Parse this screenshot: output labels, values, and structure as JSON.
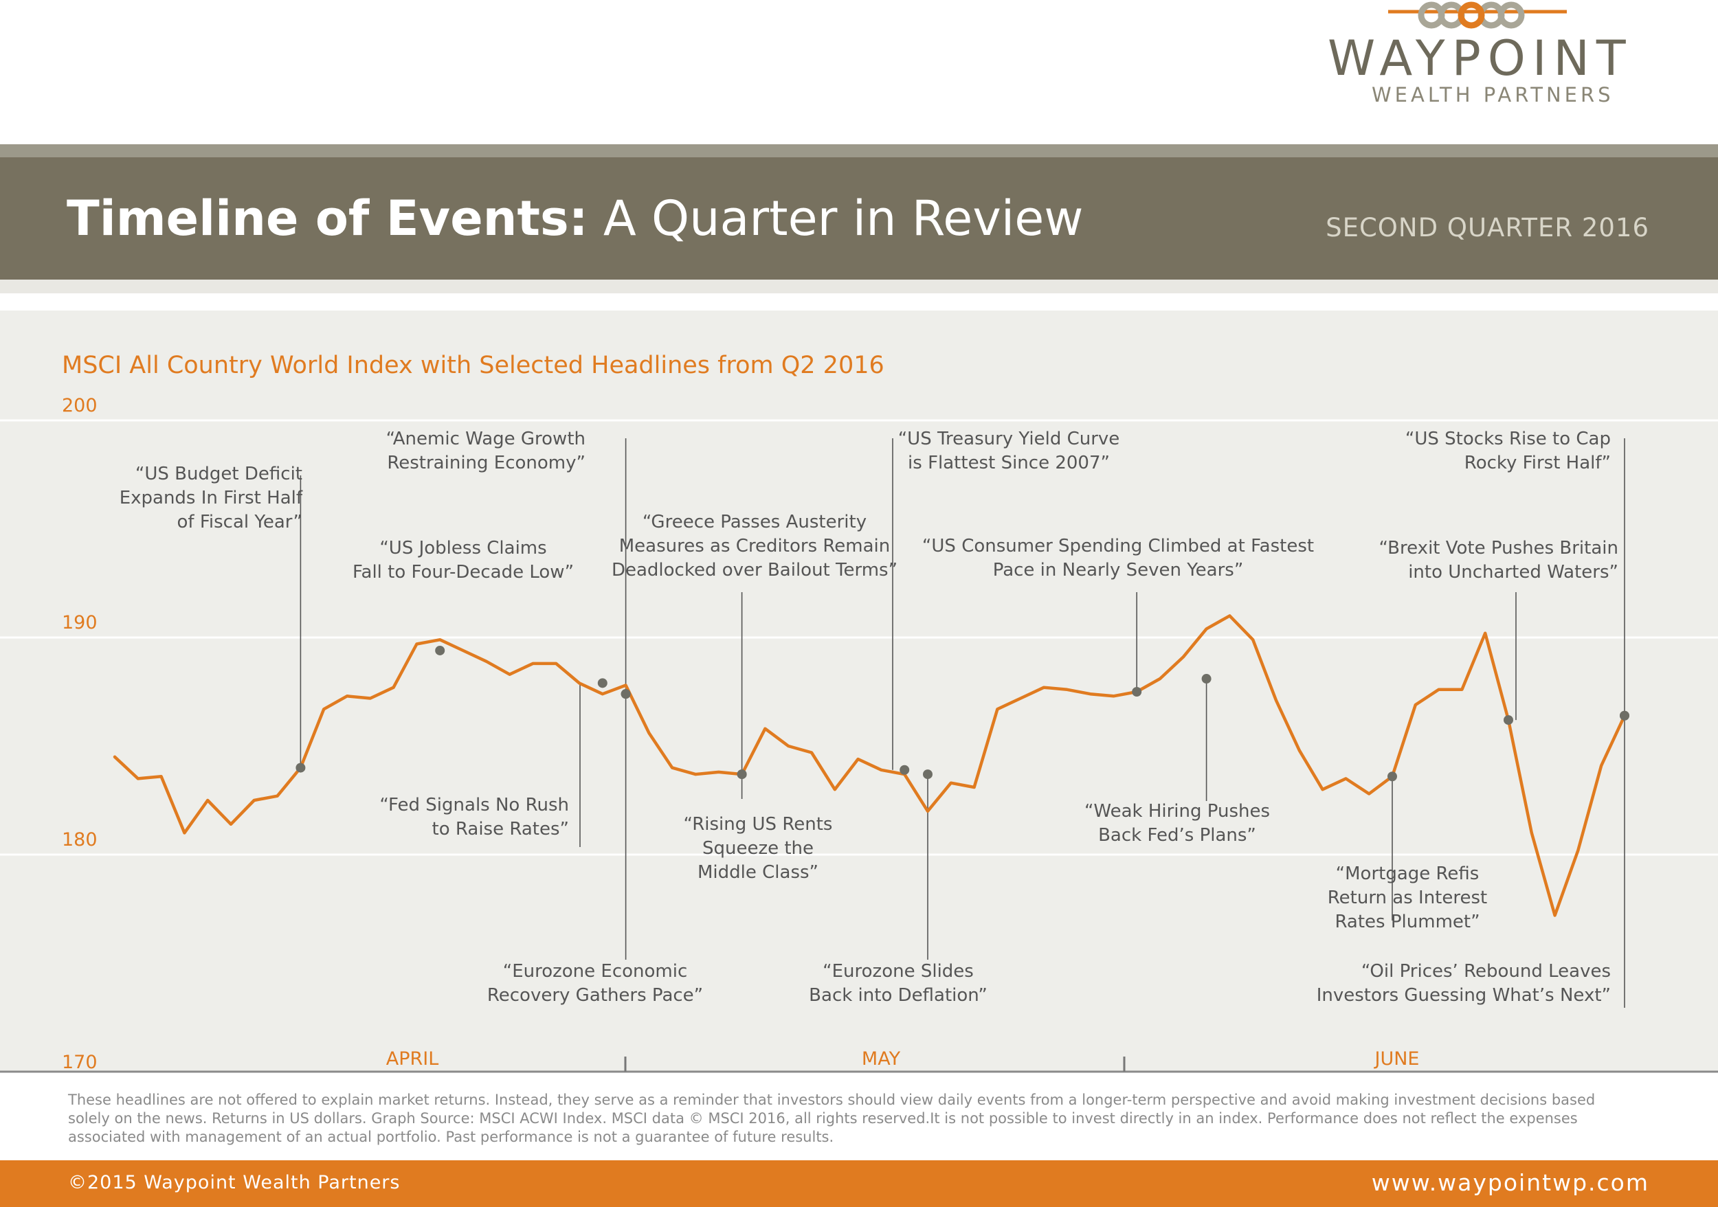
{
  "brand": {
    "name": "WAYPOINT",
    "tagline": "WEALTH PARTNERS",
    "accent_color": "#e07b20",
    "banner_color": "#77715f"
  },
  "header": {
    "title_bold": "Timeline of Events:",
    "title_regular": "A Quarter in Review",
    "quarter": "SECOND QUARTER 2016"
  },
  "chart_data": {
    "type": "line",
    "title": "MSCI All Country World Index with Selected Headlines from Q2 2016",
    "xlabel": "",
    "ylabel": "",
    "ylim": [
      170,
      200
    ],
    "yticks": [
      200,
      190,
      180,
      170
    ],
    "grid": true,
    "months": [
      "APRIL",
      "MAY",
      "JUNE"
    ],
    "series": [
      {
        "values": [
          184.5,
          183.5,
          183.6,
          181.0,
          182.5,
          181.4,
          182.5,
          182.7,
          184.0,
          186.7,
          187.3,
          187.2,
          187.7,
          189.7,
          189.9,
          189.4,
          188.9,
          188.3,
          188.8,
          188.8,
          187.9,
          187.4,
          187.8,
          185.6,
          184.0,
          183.7,
          183.8,
          183.7,
          185.8,
          185.0,
          184.7,
          183.0,
          184.4,
          183.9,
          183.7,
          182.0,
          183.3,
          183.1,
          186.7,
          187.2,
          187.7,
          187.6,
          187.4,
          187.3,
          187.5,
          188.1,
          189.1,
          190.4,
          191.0,
          189.9,
          187.1,
          184.8,
          183.0,
          183.5,
          182.8,
          183.6,
          186.9,
          187.6,
          187.6,
          190.2,
          186.2,
          181.0,
          177.2,
          180.2,
          184.1,
          186.4
        ]
      }
    ],
    "headlines": [
      {
        "text": [
          "“US Budget Deficit",
          "Expands In First Half",
          "of Fiscal Year”"
        ],
        "day": 8,
        "value": 184.0
      },
      {
        "text": [
          "“Anemic Wage Growth",
          "Restraining Economy”"
        ],
        "day": 22,
        "value": 187.4
      },
      {
        "text": [
          "“US Jobless Claims",
          "Fall to Four-Decade Low”"
        ],
        "day": 14,
        "value": 189.4
      },
      {
        "text": [
          "“Fed Signals No Rush",
          "to Raise Rates”"
        ],
        "day": 21,
        "value": 187.9
      },
      {
        "text": [
          "“Eurozone Economic",
          "Recovery Gathers Pace”"
        ],
        "day": 22,
        "value": 187.4
      },
      {
        "text": [
          "“Greece Passes Austerity",
          "Measures as Creditors Remain",
          "Deadlocked over Bailout Terms”"
        ],
        "day": 27,
        "value": 183.7
      },
      {
        "text": [
          "“Rising US Rents",
          "Squeeze the",
          "Middle Class”"
        ],
        "day": 27,
        "value": 183.7
      },
      {
        "text": [
          "“US Treasury Yield Curve",
          "is Flattest Since 2007”"
        ],
        "day": 34,
        "value": 183.9
      },
      {
        "text": [
          "“Eurozone Slides",
          "Back into Deflation”"
        ],
        "day": 35,
        "value": 183.7
      },
      {
        "text": [
          "“US Consumer Spending Climbed at Fastest",
          "Pace in Nearly Seven Years”"
        ],
        "day": 44,
        "value": 187.5
      },
      {
        "text": [
          "“Weak Hiring Pushes",
          "Back Fed’s Plans”"
        ],
        "day": 47,
        "value": 188.1
      },
      {
        "text": [
          "“Mortgage Refis",
          "Return as Interest",
          "Rates Plummet”"
        ],
        "day": 55,
        "value": 183.6
      },
      {
        "text": [
          "“US Stocks Rise to Cap",
          "Rocky First Half”"
        ],
        "day": 65,
        "value": 186.4
      },
      {
        "text": [
          "“Brexit Vote Pushes Britain",
          "into Uncharted Waters”"
        ],
        "day": 60,
        "value": 186.2
      },
      {
        "text": [
          "“Oil Prices’ Rebound Leaves",
          "Investors Guessing What’s Next”"
        ],
        "day": 65,
        "value": 186.4
      }
    ]
  },
  "disclaimer": [
    "These headlines are not offered to explain market returns. Instead, they serve as a reminder that investors should view daily events from a longer-term perspective and avoid making investment decisions based",
    "solely on the news. Returns in US dollars. Graph Source: MSCI ACWI Index. MSCI data © MSCI 2016, all rights reserved.It is not possible to invest directly in an index. Performance does not reflect the expenses",
    "associated with management of an actual portfolio. Past performance is not a guarantee of future results."
  ],
  "footer": {
    "copyright": "©2015 Waypoint Wealth Partners",
    "url": "www.waypointwp.com"
  }
}
